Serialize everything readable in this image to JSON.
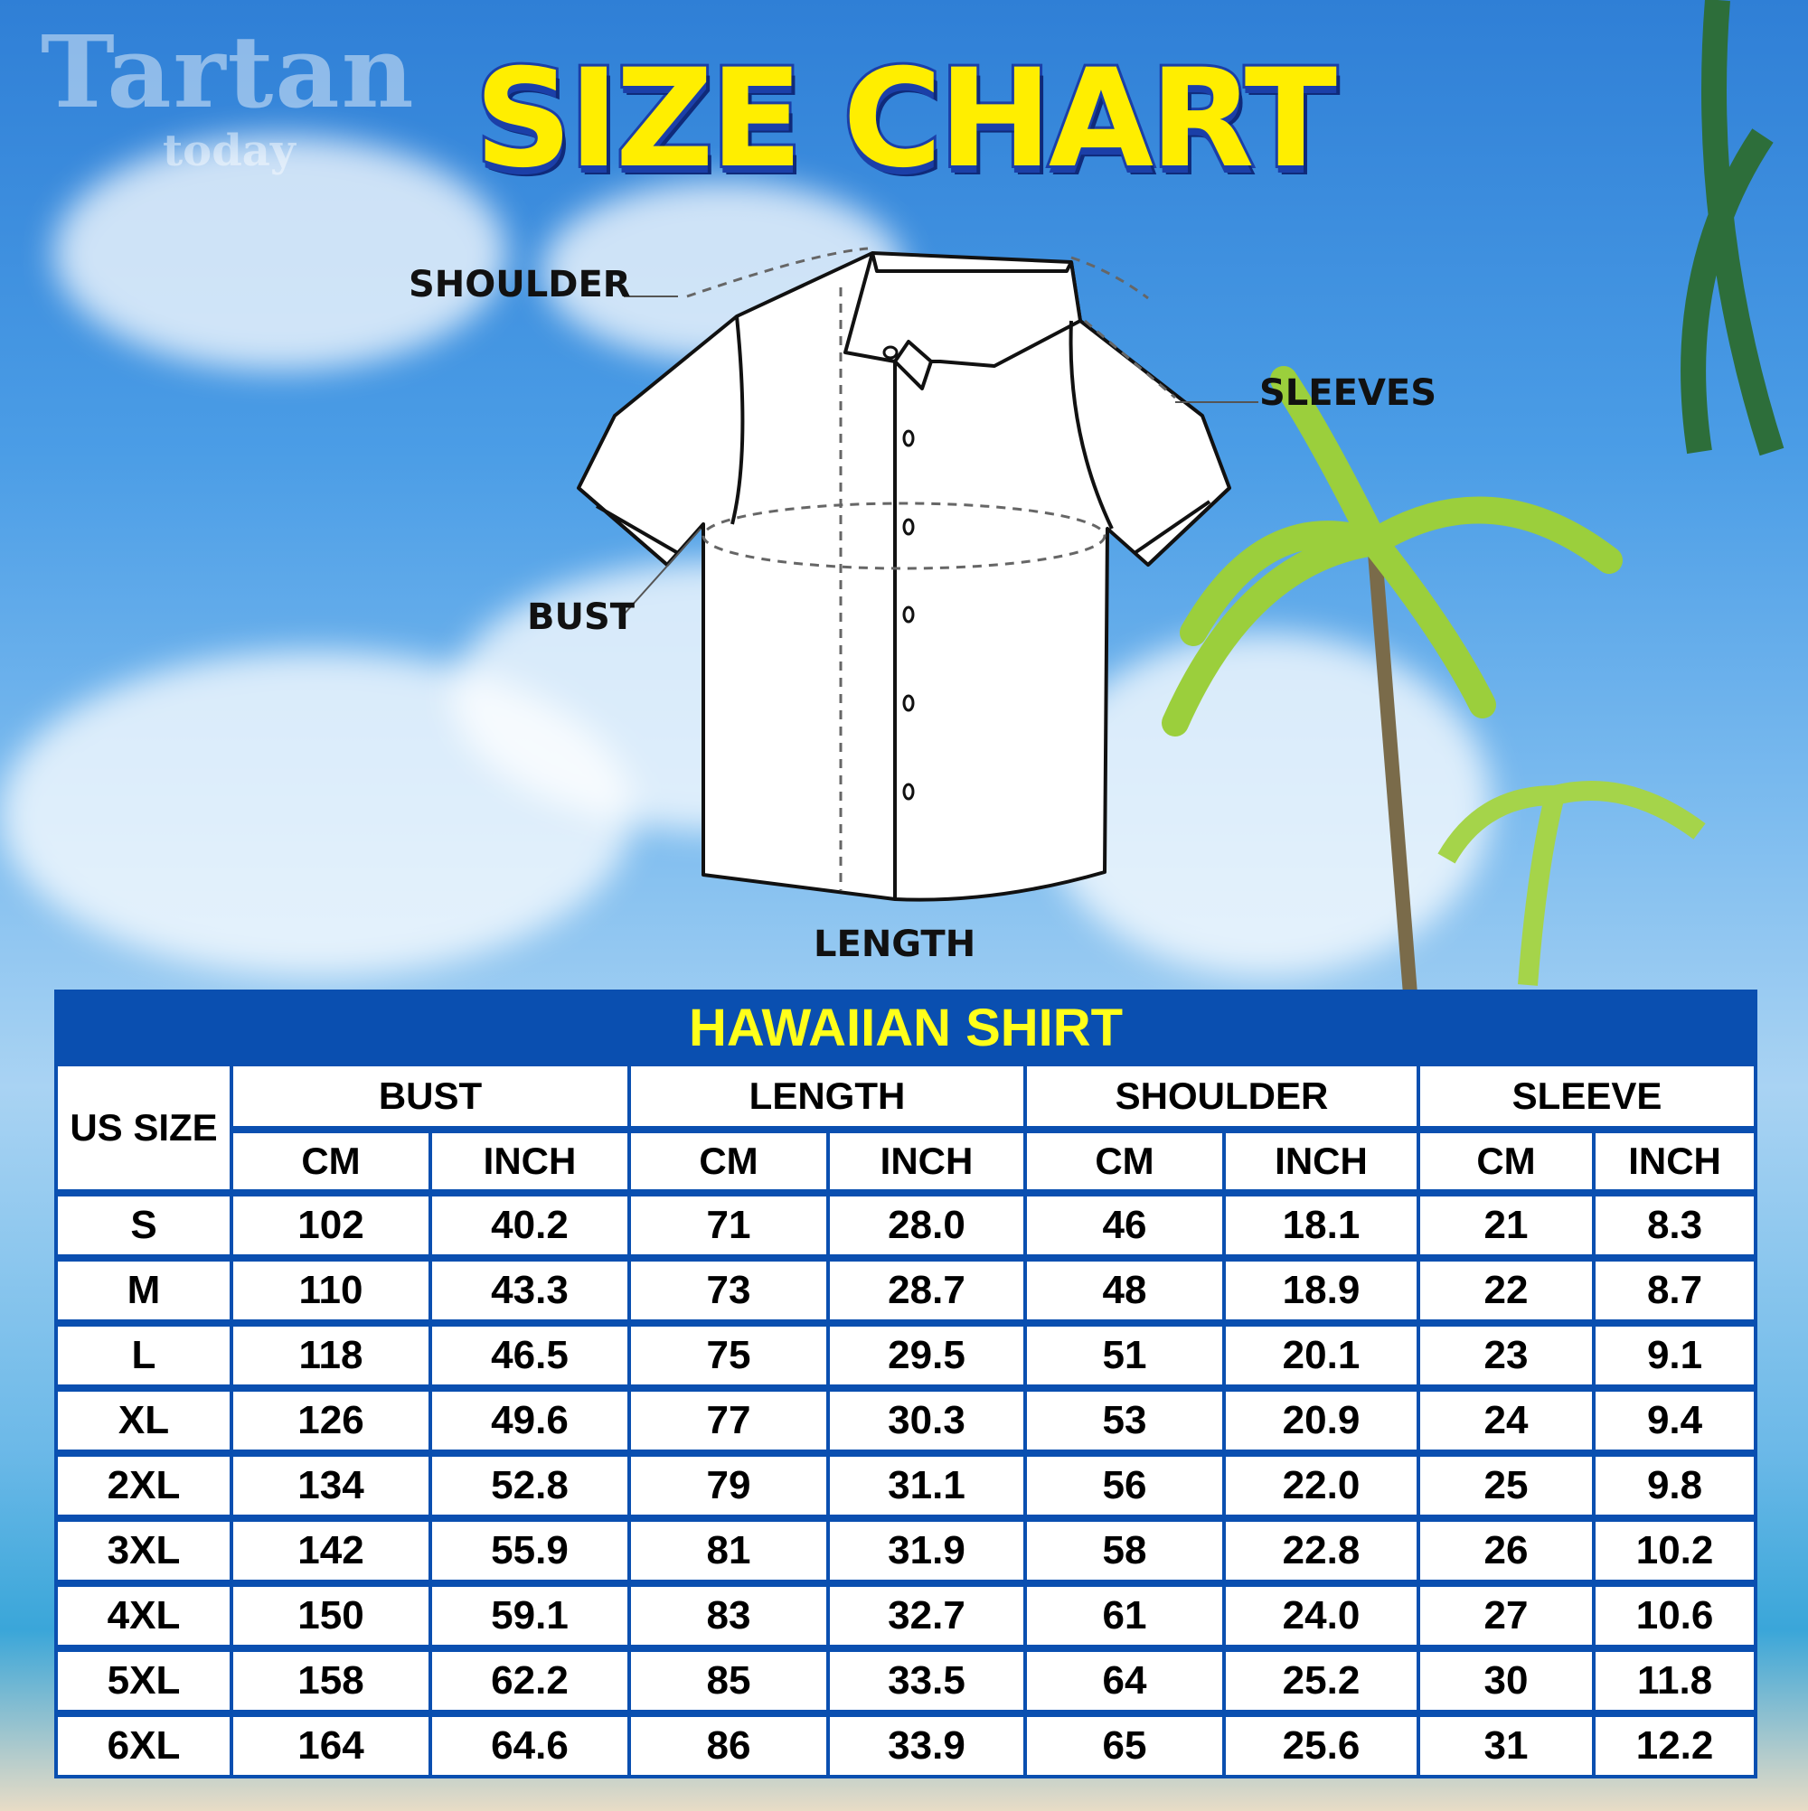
{
  "watermark": {
    "main": "Tartan",
    "sub": "today"
  },
  "title": "SIZE CHART",
  "diagram_labels": {
    "shoulder": "SHOULDER",
    "sleeves": "SLEEVES",
    "bust": "BUST",
    "length": "LENGTH"
  },
  "table": {
    "title": "HAWAIIAN SHIRT",
    "size_header": "US SIZE",
    "groups": [
      "BUST",
      "LENGTH",
      "SHOULDER",
      "SLEEVE"
    ],
    "units": [
      "CM",
      "INCH",
      "CM",
      "INCH",
      "CM",
      "INCH",
      "CM",
      "INCH"
    ],
    "rows": [
      [
        "S",
        "102",
        "40.2",
        "71",
        "28.0",
        "46",
        "18.1",
        "21",
        "8.3"
      ],
      [
        "M",
        "110",
        "43.3",
        "73",
        "28.7",
        "48",
        "18.9",
        "22",
        "8.7"
      ],
      [
        "L",
        "118",
        "46.5",
        "75",
        "29.5",
        "51",
        "20.1",
        "23",
        "9.1"
      ],
      [
        "XL",
        "126",
        "49.6",
        "77",
        "30.3",
        "53",
        "20.9",
        "24",
        "9.4"
      ],
      [
        "2XL",
        "134",
        "52.8",
        "79",
        "31.1",
        "56",
        "22.0",
        "25",
        "9.8"
      ],
      [
        "3XL",
        "142",
        "55.9",
        "81",
        "31.9",
        "58",
        "22.8",
        "26",
        "10.2"
      ],
      [
        "4XL",
        "150",
        "59.1",
        "83",
        "32.7",
        "61",
        "24.0",
        "27",
        "10.6"
      ],
      [
        "5XL",
        "158",
        "62.2",
        "85",
        "33.5",
        "64",
        "25.2",
        "30",
        "11.8"
      ],
      [
        "6XL",
        "164",
        "64.6",
        "86",
        "33.9",
        "65",
        "25.6",
        "31",
        "12.2"
      ]
    ]
  },
  "colors": {
    "table_blue": "#0a4fb0",
    "title_yellow": "#ffee00",
    "banner_text": "#ffff1a"
  }
}
